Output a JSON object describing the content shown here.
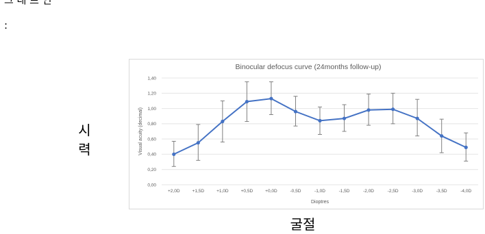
{
  "page": {
    "top_caption": "그 래 프 인",
    "colon": ":",
    "y_caption": "시력",
    "x_caption": "굴절"
  },
  "chart_data": {
    "type": "line",
    "title": "Binocular defocus curve (24months follow-up)",
    "xlabel": "Dioptres",
    "ylabel": "Visual acuity (decimal)",
    "categories": [
      "+2,0D",
      "+1,5D",
      "+1,0D",
      "+0,5D",
      "+0,0D",
      "-0,5D",
      "-1,0D",
      "-1,5D",
      "-2,0D",
      "-2,5D",
      "-3,0D",
      "-3,5D",
      "-4,0D"
    ],
    "series": [
      {
        "values": [
          0.4,
          0.55,
          0.83,
          1.09,
          1.13,
          0.96,
          0.84,
          0.87,
          0.98,
          0.99,
          0.87,
          0.64,
          0.49
        ],
        "error_low": [
          0.24,
          0.32,
          0.56,
          0.83,
          0.92,
          0.77,
          0.66,
          0.7,
          0.78,
          0.8,
          0.64,
          0.42,
          0.31
        ],
        "error_high": [
          0.57,
          0.79,
          1.1,
          1.35,
          1.35,
          1.16,
          1.02,
          1.05,
          1.19,
          1.2,
          1.12,
          0.86,
          0.68
        ],
        "color": "#4472c4"
      }
    ],
    "ylim": [
      0,
      1.4
    ],
    "yticks": [
      0.0,
      0.2,
      0.4,
      0.6,
      0.8,
      1.0,
      1.2,
      1.4
    ],
    "ytick_labels": [
      "0,00",
      "0,20",
      "0,40",
      "0,60",
      "0,80",
      "1,00",
      "1,20",
      "1,40"
    ],
    "grid": true,
    "legend": "none"
  }
}
